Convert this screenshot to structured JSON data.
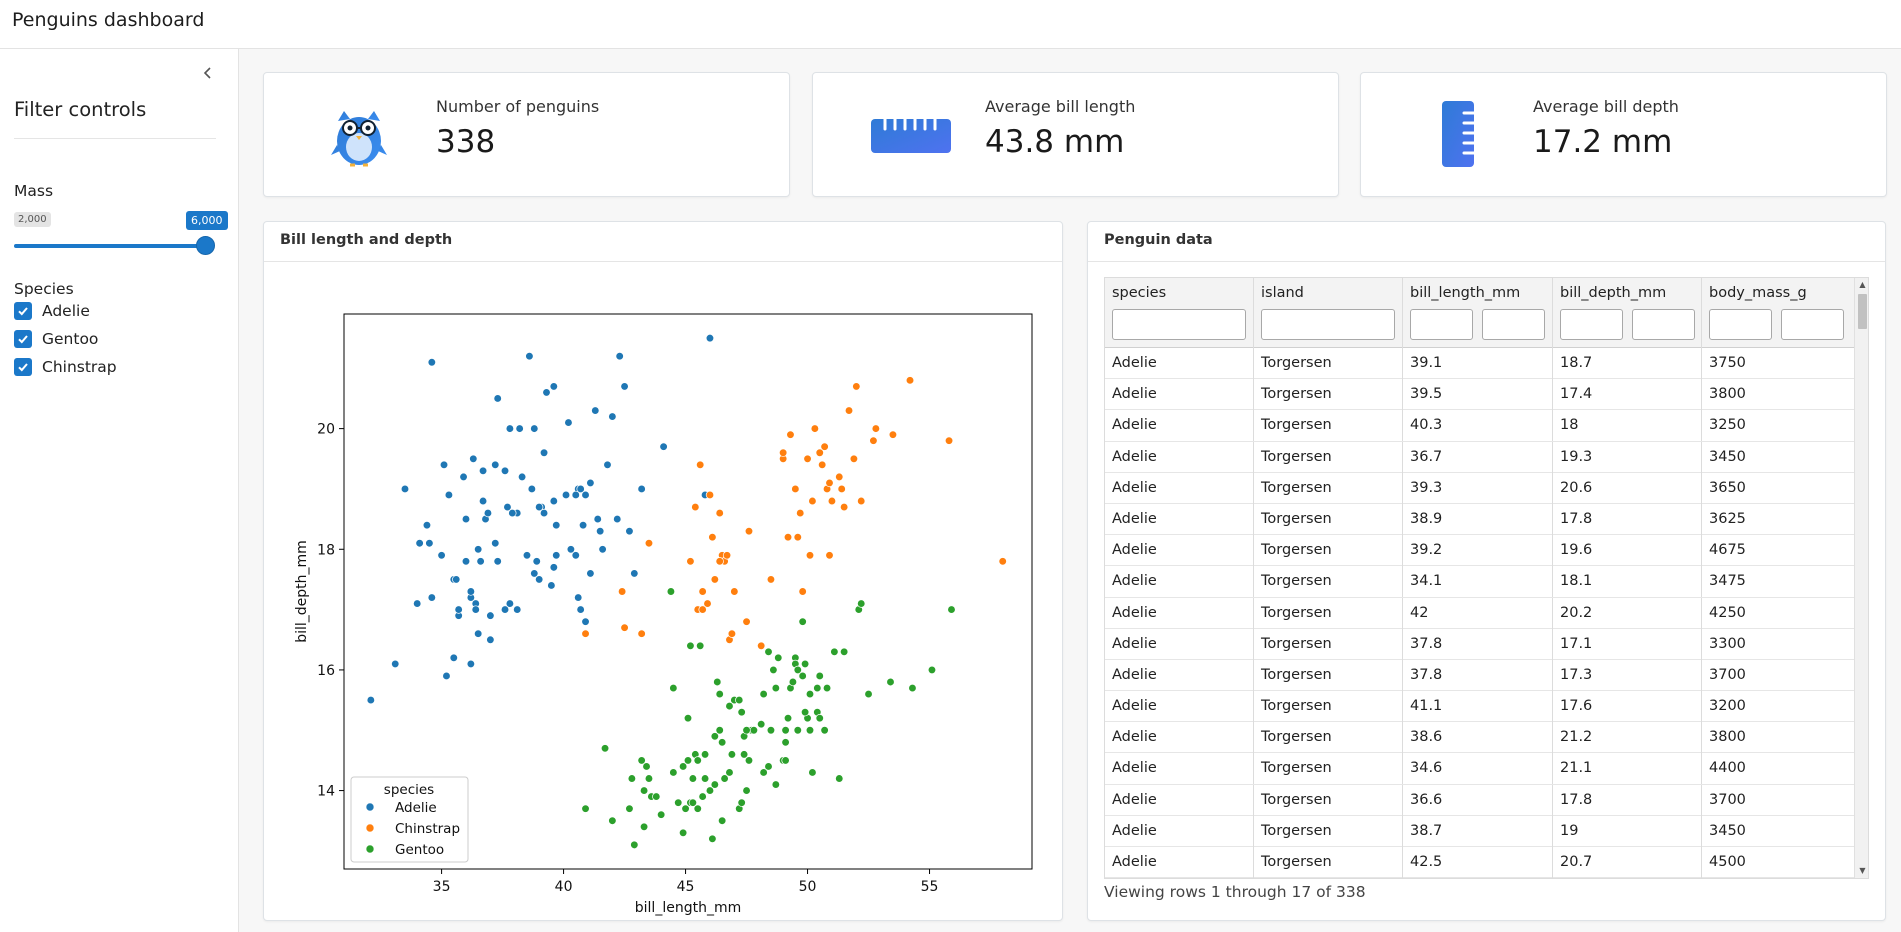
{
  "app": {
    "title": "Penguins dashboard"
  },
  "sidebar": {
    "title": "Filter controls",
    "mass": {
      "label": "Mass",
      "min_label": "2,000",
      "max_label": "6,000",
      "value_fraction": 1.0
    },
    "species": {
      "label": "Species",
      "options": [
        {
          "label": "Adelie",
          "checked": true
        },
        {
          "label": "Gentoo",
          "checked": true
        },
        {
          "label": "Chinstrap",
          "checked": true
        }
      ]
    }
  },
  "value_boxes": [
    {
      "title": "Number of penguins",
      "value": "338",
      "icon": "penguin-icon"
    },
    {
      "title": "Average bill length",
      "value": "43.8 mm",
      "icon": "ruler-icon"
    },
    {
      "title": "Average bill depth",
      "value": "17.2 mm",
      "icon": "ruler-vertical-icon"
    }
  ],
  "chart_card": {
    "title": "Bill length and depth"
  },
  "table_card": {
    "title": "Penguin data",
    "columns": [
      "species",
      "island",
      "bill_length_mm",
      "bill_depth_mm",
      "body_mass_g"
    ],
    "rows": [
      [
        "Adelie",
        "Torgersen",
        "39.1",
        "18.7",
        "3750"
      ],
      [
        "Adelie",
        "Torgersen",
        "39.5",
        "17.4",
        "3800"
      ],
      [
        "Adelie",
        "Torgersen",
        "40.3",
        "18",
        "3250"
      ],
      [
        "Adelie",
        "Torgersen",
        "36.7",
        "19.3",
        "3450"
      ],
      [
        "Adelie",
        "Torgersen",
        "39.3",
        "20.6",
        "3650"
      ],
      [
        "Adelie",
        "Torgersen",
        "38.9",
        "17.8",
        "3625"
      ],
      [
        "Adelie",
        "Torgersen",
        "39.2",
        "19.6",
        "4675"
      ],
      [
        "Adelie",
        "Torgersen",
        "34.1",
        "18.1",
        "3475"
      ],
      [
        "Adelie",
        "Torgersen",
        "42",
        "20.2",
        "4250"
      ],
      [
        "Adelie",
        "Torgersen",
        "37.8",
        "17.1",
        "3300"
      ],
      [
        "Adelie",
        "Torgersen",
        "37.8",
        "17.3",
        "3700"
      ],
      [
        "Adelie",
        "Torgersen",
        "41.1",
        "17.6",
        "3200"
      ],
      [
        "Adelie",
        "Torgersen",
        "38.6",
        "21.2",
        "3800"
      ],
      [
        "Adelie",
        "Torgersen",
        "34.6",
        "21.1",
        "4400"
      ],
      [
        "Adelie",
        "Torgersen",
        "36.6",
        "17.8",
        "3700"
      ],
      [
        "Adelie",
        "Torgersen",
        "38.7",
        "19",
        "3450"
      ],
      [
        "Adelie",
        "Torgersen",
        "42.5",
        "20.7",
        "4500"
      ]
    ],
    "summary": "Viewing rows 1 through 17 of 338"
  },
  "chart_data": {
    "type": "scatter",
    "title": "",
    "xlabel": "bill_length_mm",
    "ylabel": "bill_depth_mm",
    "xlim": [
      31,
      59.2
    ],
    "ylim": [
      12.7,
      21.9
    ],
    "xticks": [
      35,
      40,
      45,
      50,
      55
    ],
    "yticks": [
      14,
      16,
      18,
      20
    ],
    "grid": false,
    "legend": {
      "title": "species",
      "placement": "lower-left"
    },
    "series": [
      {
        "name": "Adelie",
        "color": "#1f77b4",
        "points": [
          [
            32.1,
            15.5
          ],
          [
            33.1,
            16.1
          ],
          [
            33.5,
            19.0
          ],
          [
            34.0,
            17.1
          ],
          [
            34.1,
            18.1
          ],
          [
            34.4,
            18.4
          ],
          [
            34.5,
            18.1
          ],
          [
            34.6,
            21.1
          ],
          [
            34.6,
            17.2
          ],
          [
            35.0,
            17.9
          ],
          [
            35.1,
            19.4
          ],
          [
            35.2,
            15.9
          ],
          [
            35.3,
            18.9
          ],
          [
            35.5,
            16.2
          ],
          [
            35.5,
            17.5
          ],
          [
            35.6,
            17.5
          ],
          [
            35.7,
            16.9
          ],
          [
            35.7,
            17.0
          ],
          [
            35.9,
            19.2
          ],
          [
            36.0,
            18.5
          ],
          [
            36.0,
            17.8
          ],
          [
            36.2,
            16.1
          ],
          [
            36.2,
            17.2
          ],
          [
            36.3,
            19.5
          ],
          [
            36.4,
            17.1
          ],
          [
            36.5,
            18.0
          ],
          [
            36.6,
            17.8
          ],
          [
            36.7,
            18.8
          ],
          [
            36.7,
            19.3
          ],
          [
            36.8,
            18.5
          ],
          [
            36.9,
            18.6
          ],
          [
            37.0,
            16.9
          ],
          [
            37.2,
            18.1
          ],
          [
            37.3,
            17.8
          ],
          [
            37.6,
            19.3
          ],
          [
            37.7,
            18.7
          ],
          [
            37.8,
            17.1
          ],
          [
            37.8,
            20.0
          ],
          [
            37.9,
            18.6
          ],
          [
            38.1,
            18.6
          ],
          [
            38.2,
            20.0
          ],
          [
            38.5,
            17.9
          ],
          [
            38.6,
            21.2
          ],
          [
            38.7,
            19.0
          ],
          [
            38.8,
            20.0
          ],
          [
            38.9,
            17.8
          ],
          [
            39.0,
            17.5
          ],
          [
            39.1,
            18.7
          ],
          [
            39.2,
            19.6
          ],
          [
            39.3,
            20.6
          ],
          [
            39.5,
            17.4
          ],
          [
            39.6,
            20.7
          ],
          [
            39.7,
            18.4
          ],
          [
            40.1,
            18.9
          ],
          [
            40.2,
            20.1
          ],
          [
            40.3,
            18.0
          ],
          [
            40.5,
            17.9
          ],
          [
            40.6,
            19.0
          ],
          [
            40.8,
            18.4
          ],
          [
            40.9,
            16.8
          ],
          [
            41.1,
            17.6
          ],
          [
            41.3,
            20.3
          ],
          [
            41.5,
            18.3
          ],
          [
            41.6,
            18.0
          ],
          [
            41.8,
            19.4
          ],
          [
            42.0,
            20.2
          ],
          [
            42.2,
            18.5
          ],
          [
            42.5,
            20.7
          ],
          [
            42.7,
            18.3
          ],
          [
            42.9,
            17.6
          ],
          [
            43.2,
            19.0
          ],
          [
            44.1,
            19.7
          ],
          [
            45.8,
            18.9
          ],
          [
            46.0,
            21.5
          ],
          [
            40.5,
            18.9
          ],
          [
            38.1,
            17.0
          ],
          [
            37.0,
            16.5
          ],
          [
            36.5,
            16.6
          ],
          [
            39.6,
            17.7
          ],
          [
            35.0,
            17.9
          ],
          [
            37.6,
            17.0
          ],
          [
            40.7,
            17.0
          ],
          [
            39.0,
            18.7
          ],
          [
            38.8,
            17.6
          ],
          [
            36.2,
            17.3
          ],
          [
            41.4,
            18.5
          ],
          [
            38.3,
            19.2
          ],
          [
            39.2,
            18.6
          ],
          [
            37.3,
            20.5
          ],
          [
            40.6,
            17.2
          ],
          [
            40.9,
            18.9
          ],
          [
            37.2,
            19.4
          ],
          [
            39.6,
            18.8
          ],
          [
            36.4,
            17.0
          ],
          [
            41.1,
            19.1
          ],
          [
            42.3,
            21.2
          ],
          [
            39.7,
            17.9
          ],
          [
            40.7,
            19.0
          ],
          [
            37.9,
            18.6
          ]
        ]
      },
      {
        "name": "Chinstrap",
        "color": "#ff7f0e",
        "points": [
          [
            40.9,
            16.6
          ],
          [
            42.4,
            17.3
          ],
          [
            42.5,
            16.7
          ],
          [
            43.2,
            16.6
          ],
          [
            43.5,
            18.1
          ],
          [
            45.2,
            17.8
          ],
          [
            45.4,
            18.7
          ],
          [
            45.5,
            17.0
          ],
          [
            45.6,
            19.4
          ],
          [
            45.7,
            17.3
          ],
          [
            45.9,
            17.1
          ],
          [
            46.0,
            18.9
          ],
          [
            46.1,
            18.2
          ],
          [
            46.2,
            17.5
          ],
          [
            46.4,
            18.6
          ],
          [
            46.5,
            17.9
          ],
          [
            46.6,
            17.8
          ],
          [
            46.7,
            17.9
          ],
          [
            46.8,
            16.5
          ],
          [
            46.9,
            16.6
          ],
          [
            47.0,
            17.3
          ],
          [
            47.5,
            16.8
          ],
          [
            47.6,
            18.3
          ],
          [
            48.1,
            16.4
          ],
          [
            48.5,
            17.5
          ],
          [
            49.0,
            19.5
          ],
          [
            49.2,
            18.2
          ],
          [
            49.3,
            19.9
          ],
          [
            49.5,
            19.0
          ],
          [
            49.6,
            18.2
          ],
          [
            49.7,
            18.6
          ],
          [
            49.8,
            17.3
          ],
          [
            50.0,
            19.5
          ],
          [
            50.1,
            17.9
          ],
          [
            50.2,
            18.8
          ],
          [
            50.3,
            20.0
          ],
          [
            50.5,
            19.6
          ],
          [
            50.6,
            19.4
          ],
          [
            50.7,
            19.7
          ],
          [
            50.8,
            19.0
          ],
          [
            50.9,
            19.1
          ],
          [
            51.0,
            18.8
          ],
          [
            51.3,
            19.2
          ],
          [
            51.4,
            19.0
          ],
          [
            51.5,
            18.7
          ],
          [
            51.7,
            20.3
          ],
          [
            51.9,
            19.5
          ],
          [
            52.0,
            20.7
          ],
          [
            52.2,
            18.8
          ],
          [
            52.7,
            19.8
          ],
          [
            52.8,
            20.0
          ],
          [
            53.5,
            19.9
          ],
          [
            54.2,
            20.8
          ],
          [
            55.8,
            19.8
          ],
          [
            58.0,
            17.8
          ],
          [
            45.7,
            17.0
          ],
          [
            43.5,
            18.1
          ],
          [
            46.4,
            17.8
          ],
          [
            49.0,
            19.6
          ],
          [
            50.9,
            17.9
          ]
        ]
      },
      {
        "name": "Gentoo",
        "color": "#2ca02c",
        "points": [
          [
            40.9,
            13.7
          ],
          [
            41.7,
            14.7
          ],
          [
            42.0,
            13.5
          ],
          [
            42.7,
            13.7
          ],
          [
            42.8,
            14.2
          ],
          [
            42.9,
            13.1
          ],
          [
            43.2,
            14.5
          ],
          [
            43.3,
            13.4
          ],
          [
            43.4,
            14.4
          ],
          [
            43.5,
            14.2
          ],
          [
            43.6,
            13.9
          ],
          [
            43.8,
            13.9
          ],
          [
            44.0,
            13.6
          ],
          [
            44.4,
            17.3
          ],
          [
            44.5,
            14.3
          ],
          [
            44.9,
            13.3
          ],
          [
            45.0,
            13.7
          ],
          [
            45.1,
            14.5
          ],
          [
            45.2,
            13.8
          ],
          [
            45.3,
            13.8
          ],
          [
            45.4,
            14.6
          ],
          [
            45.5,
            13.7
          ],
          [
            45.5,
            14.5
          ],
          [
            45.7,
            13.9
          ],
          [
            45.8,
            14.2
          ],
          [
            46.1,
            13.2
          ],
          [
            46.2,
            14.1
          ],
          [
            46.3,
            15.8
          ],
          [
            46.4,
            15.6
          ],
          [
            46.5,
            13.5
          ],
          [
            46.6,
            14.2
          ],
          [
            46.8,
            14.3
          ],
          [
            47.0,
            15.5
          ],
          [
            47.2,
            13.7
          ],
          [
            47.3,
            15.3
          ],
          [
            47.4,
            14.6
          ],
          [
            47.5,
            14.0
          ],
          [
            47.6,
            14.5
          ],
          [
            47.7,
            15.0
          ],
          [
            47.8,
            15.0
          ],
          [
            48.1,
            15.1
          ],
          [
            48.2,
            14.3
          ],
          [
            48.4,
            14.4
          ],
          [
            48.5,
            15.0
          ],
          [
            48.6,
            16.0
          ],
          [
            48.7,
            14.1
          ],
          [
            48.8,
            16.2
          ],
          [
            49.0,
            14.5
          ],
          [
            49.1,
            14.8
          ],
          [
            49.2,
            15.2
          ],
          [
            49.3,
            15.7
          ],
          [
            49.4,
            15.8
          ],
          [
            49.5,
            16.2
          ],
          [
            49.6,
            15.0
          ],
          [
            49.8,
            15.9
          ],
          [
            49.9,
            16.1
          ],
          [
            50.0,
            15.2
          ],
          [
            50.1,
            15.0
          ],
          [
            50.2,
            14.3
          ],
          [
            50.4,
            15.3
          ],
          [
            50.5,
            15.9
          ],
          [
            50.7,
            15.0
          ],
          [
            50.8,
            15.7
          ],
          [
            51.1,
            16.3
          ],
          [
            51.3,
            14.2
          ],
          [
            51.5,
            16.3
          ],
          [
            52.1,
            17.0
          ],
          [
            52.2,
            17.1
          ],
          [
            52.5,
            15.6
          ],
          [
            53.4,
            15.8
          ],
          [
            54.3,
            15.7
          ],
          [
            55.1,
            16.0
          ],
          [
            55.9,
            17.0
          ],
          [
            46.2,
            14.9
          ],
          [
            45.1,
            15.2
          ],
          [
            44.5,
            15.7
          ],
          [
            47.4,
            14.9
          ],
          [
            48.4,
            16.3
          ],
          [
            46.5,
            14.8
          ],
          [
            43.3,
            14.0
          ],
          [
            45.3,
            14.2
          ],
          [
            44.9,
            14.4
          ],
          [
            46.8,
            15.4
          ],
          [
            49.1,
            15.0
          ],
          [
            47.2,
            15.5
          ],
          [
            49.5,
            16.1
          ],
          [
            45.8,
            14.6
          ],
          [
            46.4,
            15.0
          ],
          [
            48.7,
            15.7
          ],
          [
            50.5,
            15.2
          ],
          [
            49.9,
            15.3
          ],
          [
            46.9,
            14.6
          ],
          [
            48.2,
            15.6
          ],
          [
            50.1,
            15.6
          ],
          [
            47.5,
            15.0
          ],
          [
            45.6,
            16.4
          ],
          [
            49.8,
            16.8
          ],
          [
            44.7,
            13.8
          ],
          [
            49.6,
            16.0
          ],
          [
            45.2,
            16.4
          ],
          [
            47.3,
            13.8
          ],
          [
            50.4,
            15.7
          ],
          [
            49.1,
            14.5
          ],
          [
            46.0,
            14.0
          ]
        ]
      }
    ]
  }
}
